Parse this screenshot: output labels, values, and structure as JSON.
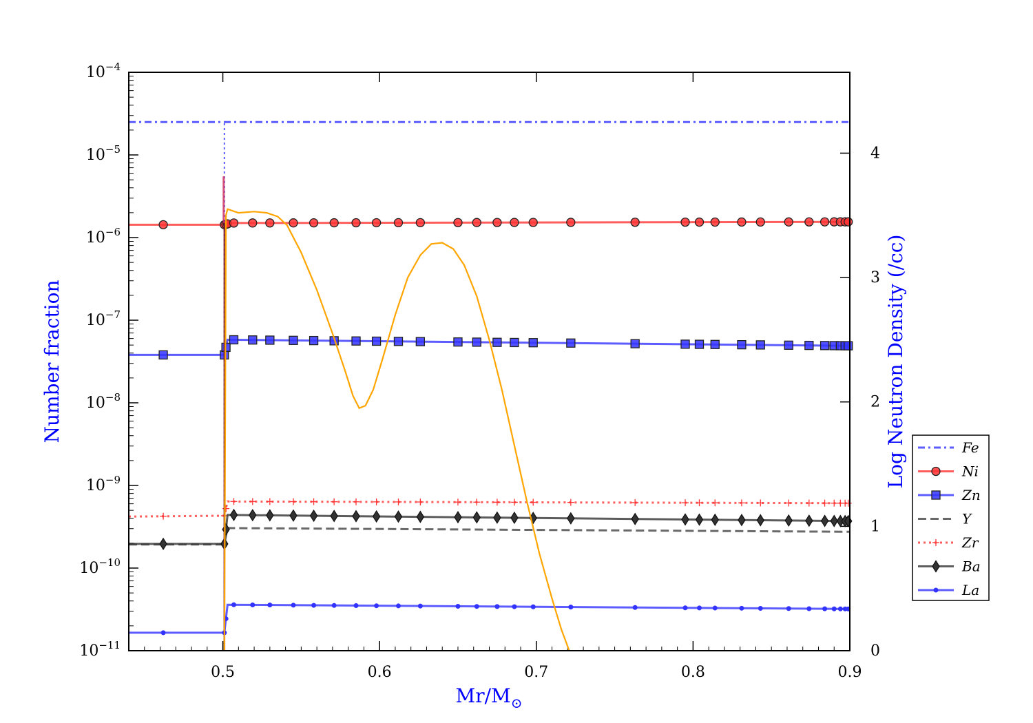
{
  "chart_data": {
    "type": "line",
    "xlabel": "Mr/M",
    "xlabel_sub": "⊙",
    "ylabel_left": "Number fraction",
    "ylabel_right": "Log Neutron Density (/cc)",
    "xlim": [
      0.44,
      0.9
    ],
    "ylim_left_log10": [
      -11,
      -4
    ],
    "ylim_right": [
      0,
      4.65
    ],
    "yscale_left": "log",
    "x_ticks": [
      0.5,
      0.6,
      0.7,
      0.8,
      0.9
    ],
    "x_tick_labels": [
      "0.5",
      "0.6",
      "0.7",
      "0.8",
      "0.9"
    ],
    "left_tick_exponents": [
      -4,
      -5,
      -6,
      -7,
      -8,
      -9,
      -10,
      -11
    ],
    "left_tick_base": "10",
    "left_tick_exp_labels": [
      "−4",
      "−5",
      "−6",
      "−7",
      "−8",
      "−9",
      "−10",
      "−11"
    ],
    "right_ticks": [
      0,
      1,
      2,
      3,
      4
    ],
    "right_tick_labels": [
      "0",
      "1",
      "2",
      "3",
      "4"
    ],
    "legend_position": "right-outside",
    "legend_entries": [
      "Fe",
      "Ni",
      "Zn",
      "Y",
      "Zr",
      "Ba",
      "La"
    ],
    "series": [
      {
        "name": "Fe",
        "color": "#3333ff",
        "style": "dashdot",
        "marker": "none",
        "points": [
          [
            0.44,
            2.5e-05
          ],
          [
            0.501,
            2.5e-05
          ],
          [
            0.501,
            2.5e-05
          ],
          [
            0.9,
            2.5e-05
          ]
        ]
      },
      {
        "name": "Ni",
        "color": "#ff3333",
        "style": "solid",
        "marker": "circle",
        "points": [
          [
            0.44,
            1.43e-06
          ],
          [
            0.501,
            1.43e-06
          ],
          [
            0.505,
            1.5e-06
          ],
          [
            0.9,
            1.55e-06
          ]
        ],
        "marker_x": [
          0.462,
          0.501,
          0.502,
          0.503,
          0.507,
          0.519,
          0.53,
          0.545,
          0.558,
          0.571,
          0.585,
          0.598,
          0.612,
          0.626,
          0.65,
          0.662,
          0.675,
          0.686,
          0.698,
          0.722,
          0.763,
          0.795,
          0.804,
          0.814,
          0.831,
          0.843,
          0.861,
          0.874,
          0.884,
          0.89,
          0.894,
          0.897,
          0.899
        ]
      },
      {
        "name": "Zn",
        "color": "#3333ff",
        "style": "solid",
        "marker": "square",
        "points": [
          [
            0.44,
            3.8e-08
          ],
          [
            0.501,
            3.8e-08
          ],
          [
            0.503,
            5.8e-08
          ],
          [
            0.9,
            4.9e-08
          ]
        ],
        "marker_x": [
          0.462,
          0.501,
          0.502,
          0.507,
          0.519,
          0.53,
          0.545,
          0.558,
          0.571,
          0.585,
          0.598,
          0.612,
          0.626,
          0.65,
          0.662,
          0.675,
          0.686,
          0.698,
          0.722,
          0.763,
          0.795,
          0.804,
          0.814,
          0.831,
          0.843,
          0.861,
          0.874,
          0.884,
          0.89,
          0.894,
          0.897,
          0.899
        ]
      },
      {
        "name": "Y",
        "color": "#444444",
        "style": "dashed",
        "marker": "none",
        "points": [
          [
            0.44,
            1.93e-10
          ],
          [
            0.501,
            1.93e-10
          ],
          [
            0.503,
            3.05e-10
          ],
          [
            0.9,
            2.75e-10
          ]
        ]
      },
      {
        "name": "Zr",
        "color": "#ff3333",
        "style": "dotted",
        "marker": "plus",
        "points": [
          [
            0.44,
            4.2e-10
          ],
          [
            0.501,
            4.3e-10
          ],
          [
            0.503,
            6.4e-10
          ],
          [
            0.9,
            6.1e-10
          ]
        ],
        "marker_x": [
          0.462,
          0.501,
          0.502,
          0.507,
          0.519,
          0.53,
          0.545,
          0.558,
          0.571,
          0.585,
          0.598,
          0.612,
          0.626,
          0.65,
          0.662,
          0.675,
          0.686,
          0.698,
          0.722,
          0.763,
          0.795,
          0.804,
          0.814,
          0.831,
          0.843,
          0.861,
          0.874,
          0.884,
          0.89,
          0.894,
          0.897,
          0.899
        ]
      },
      {
        "name": "Ba",
        "color": "#333333",
        "style": "solid",
        "marker": "diamond",
        "points": [
          [
            0.44,
            1.96e-10
          ],
          [
            0.501,
            1.96e-10
          ],
          [
            0.503,
            4.4e-10
          ],
          [
            0.9,
            3.7e-10
          ]
        ],
        "marker_x": [
          0.462,
          0.501,
          0.502,
          0.507,
          0.519,
          0.53,
          0.545,
          0.558,
          0.571,
          0.585,
          0.598,
          0.612,
          0.626,
          0.65,
          0.662,
          0.675,
          0.686,
          0.698,
          0.722,
          0.763,
          0.795,
          0.804,
          0.814,
          0.831,
          0.843,
          0.861,
          0.874,
          0.884,
          0.89,
          0.894,
          0.897,
          0.899
        ]
      },
      {
        "name": "La",
        "color": "#3333ff",
        "style": "solid",
        "marker": "dot",
        "points": [
          [
            0.44,
            1.65e-11
          ],
          [
            0.501,
            1.65e-11
          ],
          [
            0.503,
            3.6e-11
          ],
          [
            0.9,
            3.2e-11
          ]
        ],
        "marker_x": [
          0.462,
          0.501,
          0.502,
          0.507,
          0.519,
          0.53,
          0.545,
          0.558,
          0.571,
          0.585,
          0.598,
          0.612,
          0.626,
          0.65,
          0.662,
          0.675,
          0.686,
          0.698,
          0.722,
          0.763,
          0.795,
          0.804,
          0.814,
          0.831,
          0.843,
          0.861,
          0.874,
          0.884,
          0.89,
          0.894,
          0.897,
          0.899
        ]
      }
    ],
    "neutron_density": {
      "color": "#ffa500",
      "axis": "right",
      "points": [
        [
          0.501,
          0
        ],
        [
          0.502,
          3.5
        ],
        [
          0.503,
          3.55
        ],
        [
          0.51,
          3.52
        ],
        [
          0.52,
          3.53
        ],
        [
          0.528,
          3.52
        ],
        [
          0.535,
          3.49
        ],
        [
          0.541,
          3.42
        ],
        [
          0.55,
          3.2
        ],
        [
          0.56,
          2.9
        ],
        [
          0.57,
          2.55
        ],
        [
          0.578,
          2.25
        ],
        [
          0.583,
          2.05
        ],
        [
          0.587,
          1.95
        ],
        [
          0.591,
          1.97
        ],
        [
          0.596,
          2.1
        ],
        [
          0.602,
          2.35
        ],
        [
          0.61,
          2.7
        ],
        [
          0.618,
          3.0
        ],
        [
          0.626,
          3.18
        ],
        [
          0.633,
          3.27
        ],
        [
          0.64,
          3.28
        ],
        [
          0.647,
          3.23
        ],
        [
          0.654,
          3.1
        ],
        [
          0.662,
          2.85
        ],
        [
          0.67,
          2.5
        ],
        [
          0.678,
          2.1
        ],
        [
          0.686,
          1.65
        ],
        [
          0.694,
          1.2
        ],
        [
          0.702,
          0.78
        ],
        [
          0.71,
          0.42
        ],
        [
          0.716,
          0.17
        ],
        [
          0.721,
          0.0
        ]
      ]
    },
    "spike": {
      "x": 0.501,
      "top": 5.5e-06,
      "colors": [
        "#ff3333",
        "#3333ff",
        "#ffa500"
      ]
    }
  }
}
